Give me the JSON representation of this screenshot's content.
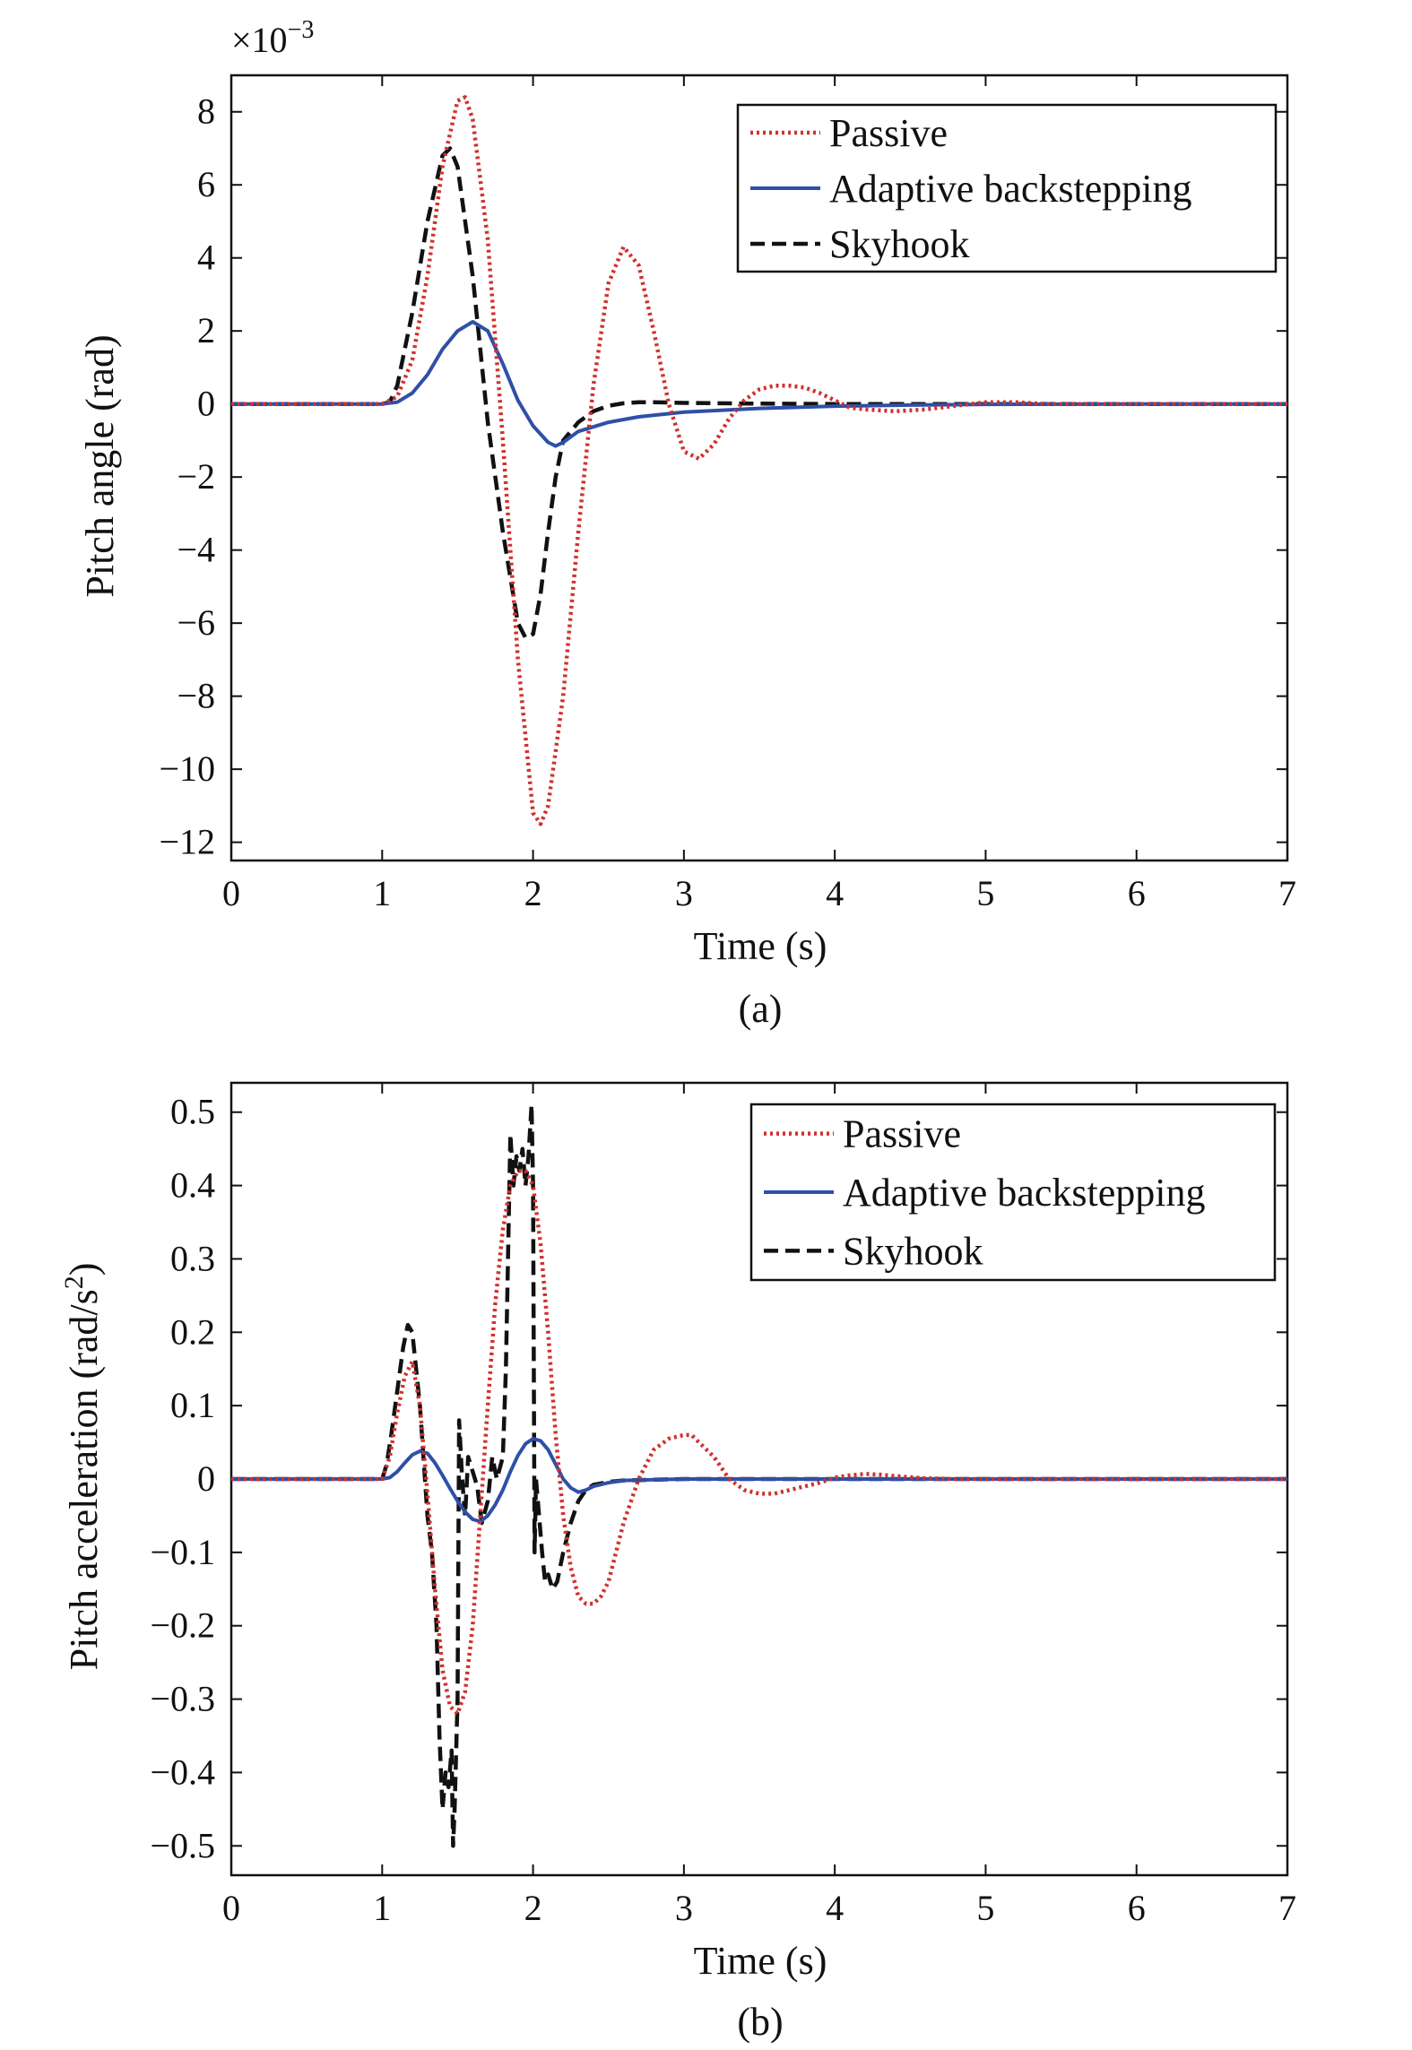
{
  "chart_data": [
    {
      "type": "line",
      "panel": "(a)",
      "caption": "(a)",
      "xlabel": "Time (s)",
      "ylabel": "Pitch angle (rad)",
      "y_multiplier": "×10",
      "y_multiplier_exp": "−3",
      "xlim": [
        0,
        7
      ],
      "ylim": [
        -12.5,
        9
      ],
      "xticks": [
        0,
        1,
        2,
        3,
        4,
        5,
        6,
        7
      ],
      "yticks": [
        8,
        6,
        4,
        2,
        0,
        -2,
        -4,
        -6,
        -8,
        -10,
        -12
      ],
      "ytick_labels": [
        "8",
        "6",
        "4",
        "2",
        "0",
        "−2",
        "−4",
        "−6",
        "−8",
        "−10",
        "−12"
      ],
      "grid": false,
      "legend_position": "top-right",
      "series": [
        {
          "name": "Passive",
          "color": "#d0312d",
          "style": "dotted",
          "x": [
            0,
            1.0,
            1.1,
            1.2,
            1.3,
            1.4,
            1.5,
            1.55,
            1.6,
            1.7,
            1.8,
            1.9,
            2.0,
            2.05,
            2.1,
            2.2,
            2.3,
            2.4,
            2.5,
            2.6,
            2.7,
            2.8,
            2.9,
            3.0,
            3.1,
            3.2,
            3.3,
            3.4,
            3.5,
            3.6,
            3.7,
            3.8,
            3.9,
            4.0,
            4.1,
            4.2,
            4.4,
            4.6,
            4.8,
            5.0,
            5.2,
            5.4,
            5.6,
            6.0,
            7.0
          ],
          "y": [
            0,
            0,
            0.2,
            1.2,
            3.5,
            6.5,
            8.3,
            8.4,
            7.8,
            4.5,
            -1.0,
            -7.0,
            -11.2,
            -11.5,
            -11.0,
            -8.0,
            -3.5,
            0.5,
            3.3,
            4.3,
            3.8,
            2.0,
            0,
            -1.3,
            -1.5,
            -1.1,
            -0.4,
            0.1,
            0.4,
            0.5,
            0.5,
            0.45,
            0.3,
            0.1,
            -0.1,
            -0.15,
            -0.2,
            -0.15,
            -0.05,
            0.05,
            0.05,
            0,
            0,
            0,
            0
          ]
        },
        {
          "name": "Adaptive backstepping",
          "color": "#2f4fa8",
          "style": "solid",
          "x": [
            0,
            1.0,
            1.1,
            1.2,
            1.3,
            1.4,
            1.5,
            1.6,
            1.7,
            1.8,
            1.9,
            2.0,
            2.1,
            2.15,
            2.2,
            2.3,
            2.5,
            2.7,
            3.0,
            3.5,
            4.0,
            4.5,
            5.0,
            6.0,
            7.0
          ],
          "y": [
            0,
            0,
            0.05,
            0.3,
            0.8,
            1.5,
            2.0,
            2.25,
            2.0,
            1.1,
            0.1,
            -0.6,
            -1.05,
            -1.15,
            -1.05,
            -0.75,
            -0.5,
            -0.35,
            -0.22,
            -0.12,
            -0.06,
            -0.03,
            -0.01,
            0,
            0
          ]
        },
        {
          "name": "Skyhook",
          "color": "#111111",
          "style": "dashed",
          "x": [
            0,
            1.0,
            1.05,
            1.1,
            1.2,
            1.3,
            1.4,
            1.45,
            1.5,
            1.6,
            1.7,
            1.8,
            1.9,
            1.95,
            2.0,
            2.05,
            2.1,
            2.15,
            2.2,
            2.3,
            2.4,
            2.5,
            2.6,
            2.7,
            2.8,
            3.0,
            3.5,
            4.0,
            5.0,
            7.0
          ],
          "y": [
            0,
            0,
            0.05,
            0.5,
            2.5,
            5.0,
            6.8,
            7.0,
            6.5,
            3.5,
            -0.5,
            -3.5,
            -6.0,
            -6.4,
            -6.3,
            -5.2,
            -3.5,
            -2.0,
            -1.0,
            -0.5,
            -0.2,
            -0.05,
            0.02,
            0.05,
            0.05,
            0.03,
            0.01,
            0,
            0,
            0
          ]
        }
      ]
    },
    {
      "type": "line",
      "panel": "(b)",
      "caption": "(b)",
      "xlabel": "Time (s)",
      "ylabel": "Pitch acceleration (rad/s",
      "ylabel_sup": "2",
      "ylabel_tail": ")",
      "xlim": [
        0,
        7
      ],
      "ylim": [
        -0.54,
        0.54
      ],
      "xticks": [
        0,
        1,
        2,
        3,
        4,
        5,
        6,
        7
      ],
      "yticks": [
        0.5,
        0.4,
        0.3,
        0.2,
        0.1,
        0,
        -0.1,
        -0.2,
        -0.3,
        -0.4,
        -0.5
      ],
      "ytick_labels": [
        "0.5",
        "0.4",
        "0.3",
        "0.2",
        "0.1",
        "0",
        "−0.1",
        "−0.2",
        "−0.3",
        "−0.4",
        "−0.5"
      ],
      "grid": false,
      "legend_position": "top-right",
      "series": [
        {
          "name": "Passive",
          "color": "#d0312d",
          "style": "dotted",
          "x": [
            0,
            1.0,
            1.05,
            1.1,
            1.15,
            1.2,
            1.25,
            1.3,
            1.35,
            1.4,
            1.45,
            1.5,
            1.55,
            1.6,
            1.65,
            1.7,
            1.75,
            1.8,
            1.85,
            1.9,
            1.95,
            2.0,
            2.05,
            2.1,
            2.15,
            2.2,
            2.25,
            2.3,
            2.35,
            2.4,
            2.45,
            2.5,
            2.55,
            2.6,
            2.7,
            2.8,
            2.9,
            3.0,
            3.05,
            3.1,
            3.2,
            3.3,
            3.4,
            3.5,
            3.6,
            3.7,
            3.8,
            3.9,
            4.0,
            4.1,
            4.2,
            4.3,
            4.4,
            4.6,
            4.8,
            5.0,
            7.0
          ],
          "y": [
            0,
            0,
            0.03,
            0.09,
            0.14,
            0.16,
            0.1,
            -0.02,
            -0.15,
            -0.26,
            -0.31,
            -0.32,
            -0.29,
            -0.2,
            -0.05,
            0.1,
            0.24,
            0.34,
            0.4,
            0.42,
            0.42,
            0.4,
            0.32,
            0.2,
            0.06,
            -0.05,
            -0.12,
            -0.16,
            -0.17,
            -0.17,
            -0.16,
            -0.14,
            -0.1,
            -0.06,
            0,
            0.04,
            0.055,
            0.06,
            0.06,
            0.05,
            0.03,
            0.0,
            -0.015,
            -0.02,
            -0.02,
            -0.015,
            -0.01,
            -0.005,
            0.002,
            0.005,
            0.007,
            0.006,
            0.004,
            0.001,
            0,
            0,
            0
          ]
        },
        {
          "name": "Adaptive backstepping",
          "color": "#2f4fa8",
          "style": "solid",
          "x": [
            0,
            1.0,
            1.05,
            1.1,
            1.15,
            1.2,
            1.25,
            1.3,
            1.35,
            1.4,
            1.45,
            1.5,
            1.55,
            1.6,
            1.65,
            1.7,
            1.75,
            1.8,
            1.85,
            1.9,
            1.95,
            2.0,
            2.05,
            2.1,
            2.15,
            2.2,
            2.25,
            2.3,
            2.35,
            2.4,
            2.5,
            2.6,
            2.8,
            3.0,
            3.5,
            4.0,
            7.0
          ],
          "y": [
            0,
            0,
            0.002,
            0.01,
            0.022,
            0.033,
            0.038,
            0.035,
            0.022,
            0.005,
            -0.013,
            -0.03,
            -0.045,
            -0.055,
            -0.058,
            -0.05,
            -0.035,
            -0.015,
            0.01,
            0.032,
            0.048,
            0.055,
            0.052,
            0.04,
            0.02,
            0.0,
            -0.012,
            -0.018,
            -0.015,
            -0.01,
            -0.005,
            -0.002,
            -0.001,
            0,
            0,
            0,
            0
          ]
        },
        {
          "name": "Skyhook",
          "color": "#111111",
          "style": "dashed",
          "x": [
            0,
            1.0,
            1.03,
            1.06,
            1.1,
            1.14,
            1.17,
            1.2,
            1.25,
            1.3,
            1.33,
            1.36,
            1.38,
            1.4,
            1.42,
            1.44,
            1.46,
            1.47,
            1.48,
            1.5,
            1.51,
            1.53,
            1.55,
            1.57,
            1.6,
            1.63,
            1.66,
            1.7,
            1.73,
            1.76,
            1.8,
            1.82,
            1.85,
            1.87,
            1.89,
            1.91,
            1.93,
            1.95,
            1.97,
            1.99,
            2.0,
            2.01,
            2.02,
            2.04,
            2.06,
            2.08,
            2.1,
            2.13,
            2.16,
            2.2,
            2.25,
            2.3,
            2.35,
            2.4,
            2.5,
            2.6,
            2.8,
            3.0,
            3.5,
            4.0,
            7.0
          ],
          "y": [
            0,
            0,
            0.02,
            0.06,
            0.12,
            0.18,
            0.21,
            0.2,
            0.1,
            -0.05,
            -0.1,
            -0.2,
            -0.35,
            -0.45,
            -0.4,
            -0.42,
            -0.37,
            -0.5,
            -0.45,
            -0.3,
            0.08,
            0.0,
            -0.05,
            0.03,
            0.01,
            -0.01,
            -0.06,
            -0.03,
            0.03,
            0.0,
            0.03,
            0.15,
            0.47,
            0.4,
            0.44,
            0.42,
            0.45,
            0.4,
            0.44,
            0.51,
            0.4,
            -0.1,
            0.0,
            -0.05,
            -0.1,
            -0.14,
            -0.13,
            -0.15,
            -0.14,
            -0.1,
            -0.06,
            -0.03,
            -0.015,
            -0.008,
            -0.004,
            -0.002,
            -0.001,
            0,
            0,
            0,
            0
          ]
        }
      ]
    }
  ]
}
